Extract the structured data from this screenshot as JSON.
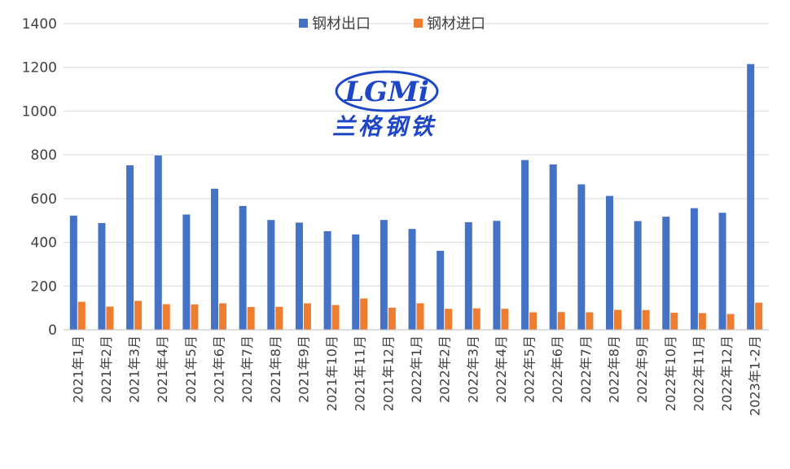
{
  "chart_data": {
    "type": "bar",
    "title": "",
    "xlabel": "",
    "ylabel": "",
    "ylim": [
      0,
      1400
    ],
    "yticks": [
      0,
      200,
      400,
      600,
      800,
      1000,
      1200,
      1400
    ],
    "grid": "horizontal",
    "legend_position": "top-center",
    "categories": [
      "2021年1月",
      "2021年2月",
      "2021年3月",
      "2021年4月",
      "2021年5月",
      "2021年6月",
      "2021年7月",
      "2021年8月",
      "2021年9月",
      "2021年10月",
      "2021年11月",
      "2021年12月",
      "2022年1月",
      "2022年2月",
      "2022年3月",
      "2022年4月",
      "2022年5月",
      "2022年6月",
      "2022年7月",
      "2022年8月",
      "2022年9月",
      "2022年10月",
      "2022年11月",
      "2022年12月",
      "2023年1-2月"
    ],
    "series": [
      {
        "name": "钢材出口",
        "color": "#4472C4",
        "values": [
          522,
          488,
          752,
          797,
          527,
          645,
          566,
          502,
          490,
          451,
          436,
          502,
          461,
          361,
          492,
          498,
          776,
          756,
          665,
          612,
          497,
          517,
          556,
          535,
          1215
        ]
      },
      {
        "name": "钢材进口",
        "color": "#ED7D31",
        "values": [
          128,
          106,
          132,
          117,
          116,
          121,
          104,
          105,
          121,
          113,
          143,
          101,
          121,
          96,
          98,
          96,
          80,
          81,
          80,
          91,
          90,
          78,
          76,
          72,
          124
        ]
      }
    ]
  },
  "watermark": {
    "text": "LGMi",
    "subtitle": "兰格钢铁",
    "color": "#1E47C8"
  }
}
